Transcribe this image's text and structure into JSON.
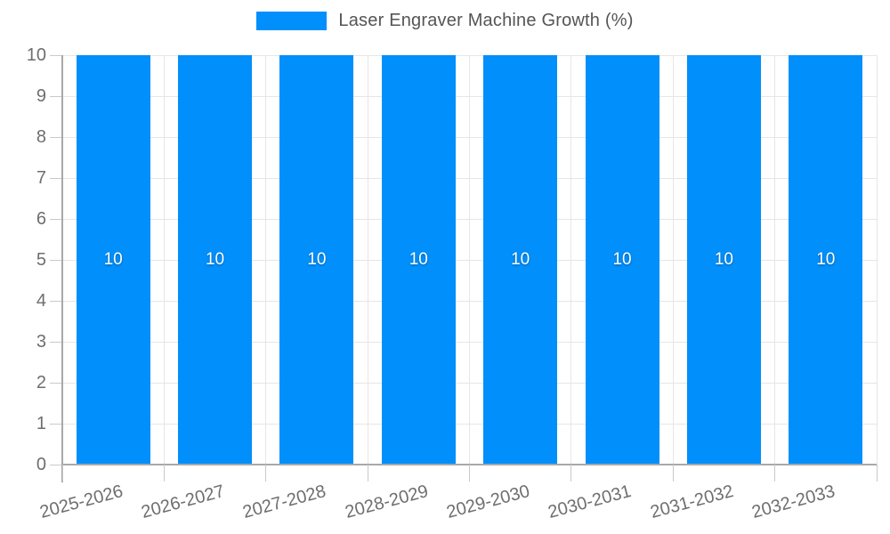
{
  "legend": {
    "label": "Laser Engraver Machine Growth (%)"
  },
  "chart_data": {
    "type": "bar",
    "title": "",
    "xlabel": "",
    "ylabel": "",
    "categories": [
      "2025-2026",
      "2026-2027",
      "2027-2028",
      "2028-2029",
      "2029-2030",
      "2030-2031",
      "2031-2032",
      "2032-2033"
    ],
    "series": [
      {
        "name": "Laser Engraver Machine Growth (%)",
        "values": [
          10,
          10,
          10,
          10,
          10,
          10,
          10,
          10
        ]
      }
    ],
    "bar_value_labels": [
      "10",
      "10",
      "10",
      "10",
      "10",
      "10",
      "10",
      "10"
    ],
    "ylim": [
      0,
      10
    ],
    "yticks": [
      0,
      1,
      2,
      3,
      4,
      5,
      6,
      7,
      8,
      9,
      10
    ],
    "grid": true,
    "legend_position": "top",
    "x_label_rotation_deg": -15,
    "colors": {
      "bar": "#008FFB",
      "grid": "#e6e6e6",
      "axis_line": "#a8a8a8",
      "tick": "#c9c9c9",
      "axis_label": "#6e6e6e",
      "legend_text": "#555555",
      "bar_label": "#ffffff"
    }
  }
}
